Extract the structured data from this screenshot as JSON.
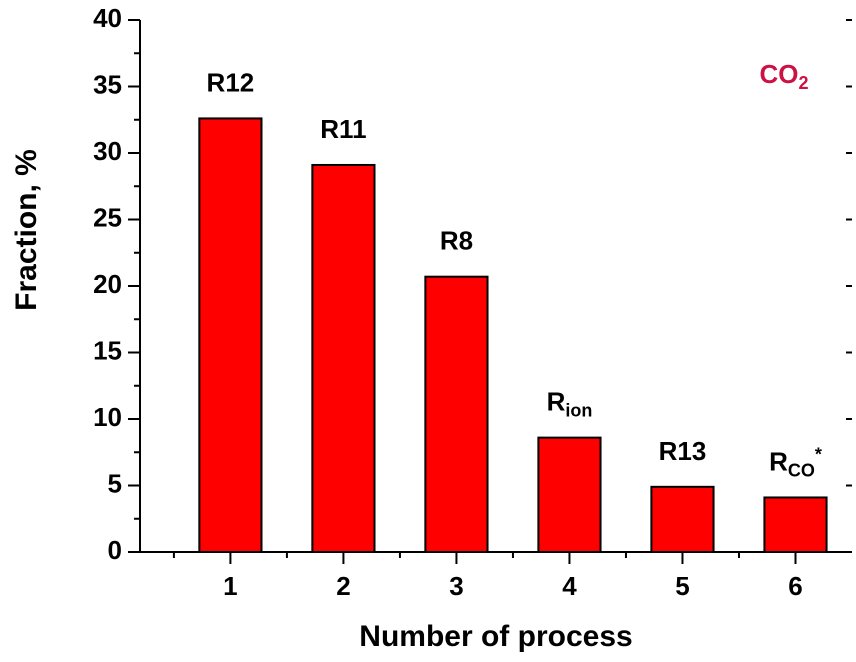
{
  "chart_data": {
    "type": "bar",
    "x": [
      1,
      2,
      3,
      4,
      5,
      6
    ],
    "values": [
      32.6,
      29.1,
      20.7,
      8.6,
      4.9,
      4.1
    ],
    "color": "#ff0000",
    "bar_labels": [
      {
        "base": "R12"
      },
      {
        "base": "R11"
      },
      {
        "base": "R8"
      },
      {
        "base": "R",
        "sub": "ion"
      },
      {
        "base": "R13"
      },
      {
        "base": "R",
        "sub": "CO",
        "sup": "*"
      }
    ],
    "annotation": {
      "base": "CO",
      "sub": "2",
      "color": "#cc1144"
    },
    "xlabel": "Number of process",
    "ylabel": "Fraction, %",
    "xlim": [
      0.2,
      6.5
    ],
    "xticks": [
      1,
      2,
      3,
      4,
      5,
      6
    ],
    "ylim": [
      0,
      40
    ],
    "yticks": [
      0,
      5,
      10,
      15,
      20,
      25,
      30,
      35,
      40
    ]
  }
}
